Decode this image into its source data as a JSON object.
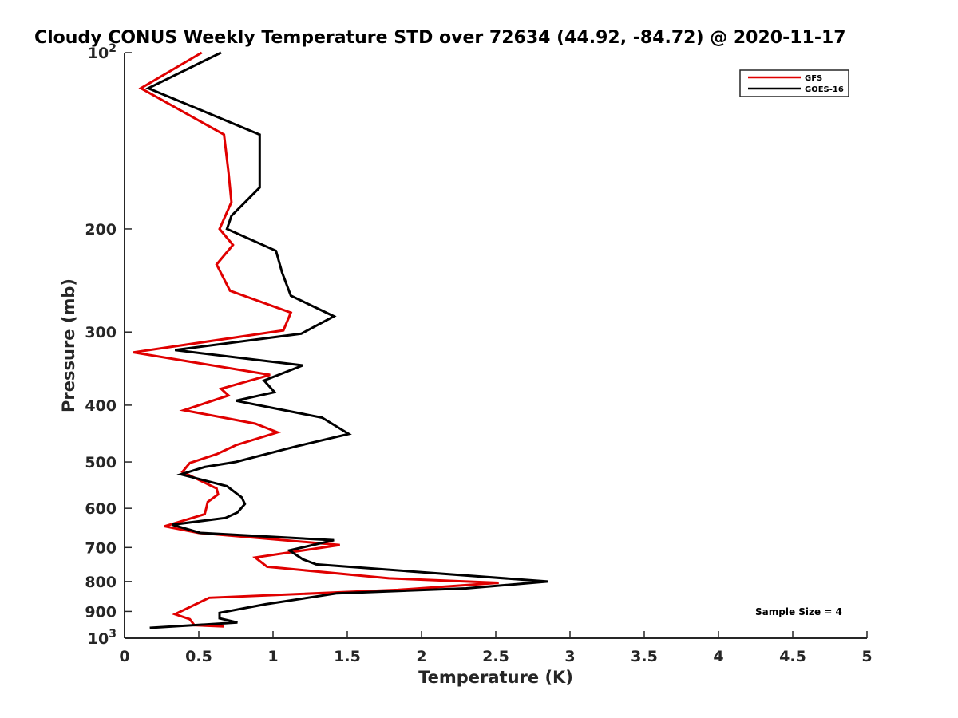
{
  "chart_data": {
    "type": "line",
    "title": "Cloudy CONUS Weekly Temperature STD over 72634 (44.92, -84.72) @ 2020-11-17",
    "xlabel": "Temperature (K)",
    "ylabel": "Pressure (mb)",
    "xlim": [
      0,
      5
    ],
    "ylim": [
      100,
      1000
    ],
    "yscale": "log",
    "yreversed": true,
    "x_ticks": [
      "0",
      "0.5",
      "1",
      "1.5",
      "2",
      "2.5",
      "3",
      "3.5",
      "4",
      "4.5",
      "5"
    ],
    "y_ticks": [
      {
        "value": 100,
        "base": "10",
        "exp": "2"
      },
      {
        "value": 200,
        "label": "200"
      },
      {
        "value": 300,
        "label": "300"
      },
      {
        "value": 400,
        "label": "400"
      },
      {
        "value": 500,
        "label": "500"
      },
      {
        "value": 600,
        "label": "600"
      },
      {
        "value": 700,
        "label": "700"
      },
      {
        "value": 800,
        "label": "800"
      },
      {
        "value": 900,
        "label": "900"
      },
      {
        "value": 1000,
        "base": "10",
        "exp": "3"
      }
    ],
    "grid": false,
    "legend_position": "top-right",
    "annotation": "Sample Size = 4",
    "series": [
      {
        "name": "GFS",
        "color": "#e00000",
        "points": [
          [
            0.52,
            100
          ],
          [
            0.11,
            115
          ],
          [
            0.67,
            138
          ],
          [
            0.7,
            160
          ],
          [
            0.72,
            180
          ],
          [
            0.64,
            200
          ],
          [
            0.73,
            213
          ],
          [
            0.62,
            230
          ],
          [
            0.71,
            255
          ],
          [
            1.12,
            278
          ],
          [
            1.07,
            298
          ],
          [
            0.06,
            325
          ],
          [
            0.98,
            355
          ],
          [
            0.65,
            375
          ],
          [
            0.7,
            385
          ],
          [
            0.4,
            408
          ],
          [
            0.88,
            430
          ],
          [
            1.03,
            445
          ],
          [
            0.75,
            468
          ],
          [
            0.62,
            485
          ],
          [
            0.44,
            502
          ],
          [
            0.39,
            520
          ],
          [
            0.62,
            555
          ],
          [
            0.63,
            568
          ],
          [
            0.56,
            585
          ],
          [
            0.55,
            600
          ],
          [
            0.54,
            614
          ],
          [
            0.27,
            644
          ],
          [
            0.5,
            661
          ],
          [
            1.45,
            693
          ],
          [
            0.88,
            728
          ],
          [
            0.96,
            755
          ],
          [
            1.78,
            790
          ],
          [
            2.52,
            804
          ],
          [
            1.84,
            827
          ],
          [
            0.57,
            853
          ],
          [
            0.34,
            910
          ],
          [
            0.44,
            928
          ],
          [
            0.47,
            950
          ],
          [
            0.67,
            955
          ]
        ]
      },
      {
        "name": "GOES-16",
        "color": "#000000",
        "points": [
          [
            0.65,
            100
          ],
          [
            0.16,
            115
          ],
          [
            0.91,
            138
          ],
          [
            0.91,
            170
          ],
          [
            0.72,
            190
          ],
          [
            0.69,
            200
          ],
          [
            1.02,
            218
          ],
          [
            1.06,
            237
          ],
          [
            1.12,
            260
          ],
          [
            1.41,
            282
          ],
          [
            1.19,
            302
          ],
          [
            0.34,
            322
          ],
          [
            1.2,
            342
          ],
          [
            0.94,
            363
          ],
          [
            1.01,
            380
          ],
          [
            0.75,
            393
          ],
          [
            1.33,
            420
          ],
          [
            1.51,
            448
          ],
          [
            1.16,
            470
          ],
          [
            0.75,
            500
          ],
          [
            0.54,
            510
          ],
          [
            0.38,
            525
          ],
          [
            0.69,
            550
          ],
          [
            0.79,
            575
          ],
          [
            0.81,
            590
          ],
          [
            0.76,
            610
          ],
          [
            0.68,
            623
          ],
          [
            0.32,
            640
          ],
          [
            0.51,
            661
          ],
          [
            1.41,
            680
          ],
          [
            1.11,
            708
          ],
          [
            1.2,
            733
          ],
          [
            1.29,
            748
          ],
          [
            2.85,
            800
          ],
          [
            2.3,
            822
          ],
          [
            1.43,
            838
          ],
          [
            0.95,
            875
          ],
          [
            0.64,
            905
          ],
          [
            0.64,
            925
          ],
          [
            0.76,
            940
          ],
          [
            0.17,
            960
          ]
        ]
      }
    ]
  }
}
